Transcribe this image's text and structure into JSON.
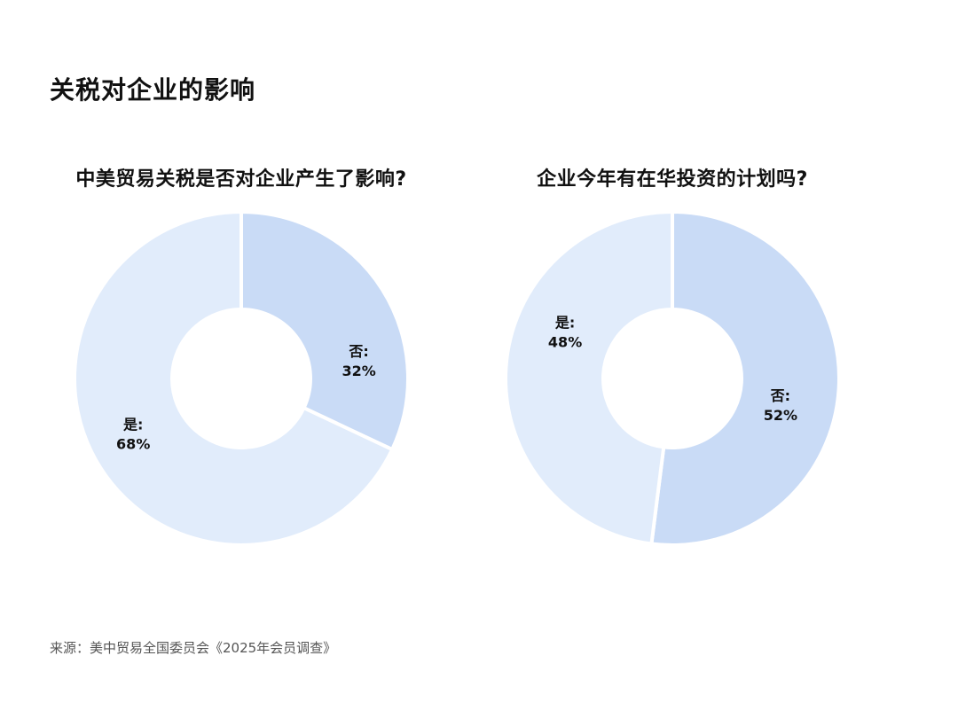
{
  "page": {
    "title": "关税对企业的影响",
    "source": "来源：美中贸易全国委员会《2025年会员调查》"
  },
  "colors": {
    "light": "#e1ecfb",
    "medium": "#c9dbf6"
  },
  "chart_data": [
    {
      "type": "pie",
      "title": "中美贸易关税是否对企业产生了影响?",
      "slices": [
        {
          "label": "否:",
          "value": 32,
          "value_text": "32%",
          "color": "#c9dbf6"
        },
        {
          "label": "是:",
          "value": 68,
          "value_text": "68%",
          "color": "#e1ecfb"
        }
      ]
    },
    {
      "type": "pie",
      "title": "企业今年有在华投资的计划吗?",
      "slices": [
        {
          "label": "否:",
          "value": 52,
          "value_text": "52%",
          "color": "#c9dbf6"
        },
        {
          "label": "是:",
          "value": 48,
          "value_text": "48%",
          "color": "#e1ecfb"
        }
      ]
    }
  ]
}
